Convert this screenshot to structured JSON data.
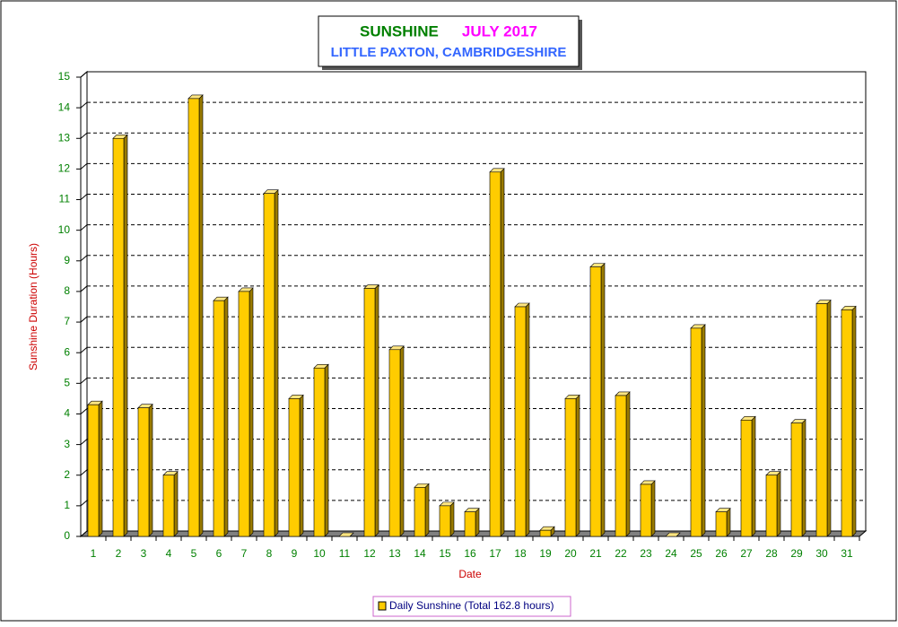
{
  "chart_data": {
    "type": "bar",
    "title": "SUNSHINE",
    "title_date": "JULY 2017",
    "subtitle": "LITTLE PAXTON, CAMBRIDGESHIRE",
    "title_color": "#008000",
    "title_date_color": "#ff00ff",
    "subtitle_color": "#3366ff",
    "x_label": "Date",
    "y_label": "Sunshine Duration (Hours)",
    "categories": [
      "1",
      "2",
      "3",
      "4",
      "5",
      "6",
      "7",
      "8",
      "9",
      "10",
      "11",
      "12",
      "13",
      "14",
      "15",
      "16",
      "17",
      "18",
      "19",
      "20",
      "21",
      "22",
      "23",
      "24",
      "25",
      "26",
      "27",
      "28",
      "29",
      "30",
      "31"
    ],
    "series": [
      {
        "name": "Daily Sunshine (Total 162.8 hours)",
        "color": "#ffcc00",
        "values": [
          4.3,
          13.0,
          4.2,
          2.0,
          14.3,
          7.7,
          8.0,
          11.2,
          4.5,
          5.5,
          0,
          8.1,
          6.1,
          1.6,
          1.0,
          0.8,
          11.9,
          7.5,
          0.2,
          4.5,
          8.8,
          4.6,
          1.7,
          0,
          6.8,
          0.8,
          3.8,
          2.0,
          3.7,
          7.6,
          7.4
        ]
      }
    ],
    "ylim": [
      0,
      15
    ],
    "yticks": [
      0,
      1,
      2,
      3,
      4,
      5,
      6,
      7,
      8,
      9,
      10,
      11,
      12,
      13,
      14,
      15
    ],
    "grid": true,
    "legend": "bottom"
  }
}
